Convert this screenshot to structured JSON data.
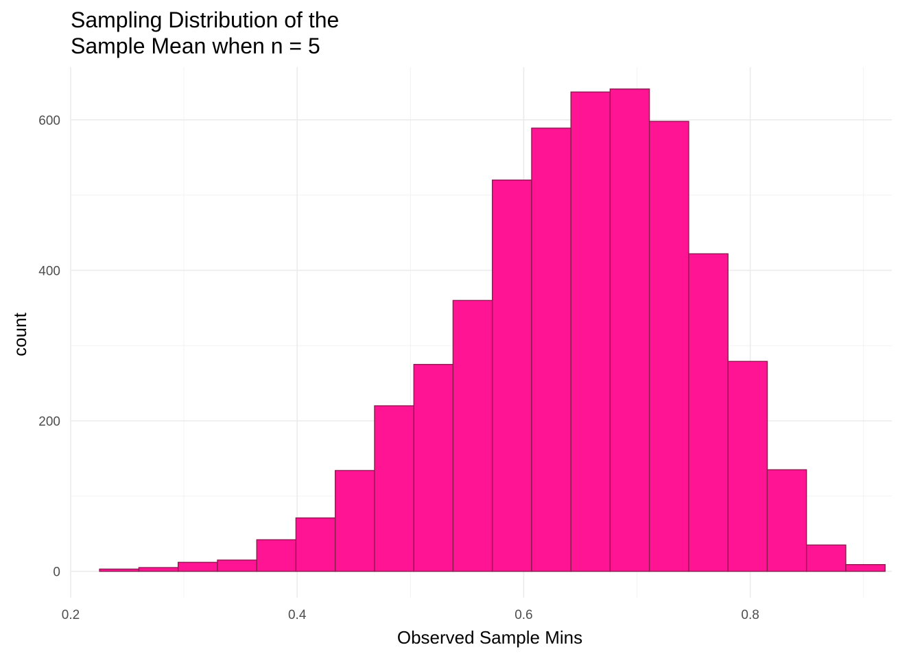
{
  "chart_data": {
    "type": "bar",
    "title_lines": [
      "Sampling Distribution of the",
      "Sample Mean when n = 5"
    ],
    "xlabel": "Observed Sample Mins",
    "ylabel": "count",
    "xlim": [
      0.2,
      0.925
    ],
    "ylim": [
      -35,
      670
    ],
    "x_ticks": [
      0.2,
      0.4,
      0.6,
      0.8
    ],
    "x_tick_labels": [
      "0.2",
      "0.4",
      "0.6",
      "0.8"
    ],
    "y_ticks": [
      0,
      200,
      400,
      600
    ],
    "y_tick_labels": [
      "0",
      "200",
      "400",
      "600"
    ],
    "grid": true,
    "bin_width": 0.03467,
    "bin_starts": [
      0.2255,
      0.2602,
      0.2949,
      0.3296,
      0.3643,
      0.3989,
      0.4336,
      0.4683,
      0.503,
      0.5376,
      0.5723,
      0.607,
      0.6417,
      0.6763,
      0.711,
      0.7457,
      0.7804,
      0.815,
      0.8497,
      0.8844
    ],
    "values": [
      3,
      5,
      12,
      15,
      42,
      71,
      134,
      220,
      275,
      360,
      520,
      589,
      637,
      641,
      598,
      422,
      279,
      135,
      35,
      9
    ],
    "fill_color": "#ff1493",
    "edge_color": "#8b1a4f"
  }
}
